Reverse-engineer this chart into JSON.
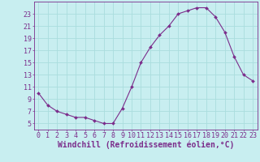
{
  "x": [
    0,
    1,
    2,
    3,
    4,
    5,
    6,
    7,
    8,
    9,
    10,
    11,
    12,
    13,
    14,
    15,
    16,
    17,
    18,
    19,
    20,
    21,
    22,
    23
  ],
  "y": [
    10,
    8,
    7,
    6.5,
    6,
    6,
    5.5,
    5,
    5,
    7.5,
    11,
    15,
    17.5,
    19.5,
    21,
    23,
    23.5,
    24,
    24,
    22.5,
    20,
    16,
    13,
    12
  ],
  "line_color": "#7B2D8B",
  "marker": "D",
  "marker_size": 2.0,
  "bg_color": "#C8EEF0",
  "grid_color": "#AADDDD",
  "xlabel": "Windchill (Refroidissement éolien,°C)",
  "xlabel_fontsize": 7,
  "tick_color": "#7B2D8B",
  "tick_fontsize": 6,
  "ylim": [
    4,
    25
  ],
  "yticks": [
    5,
    7,
    9,
    11,
    13,
    15,
    17,
    19,
    21,
    23
  ],
  "xlim": [
    -0.5,
    23.5
  ],
  "xticks": [
    0,
    1,
    2,
    3,
    4,
    5,
    6,
    7,
    8,
    9,
    10,
    11,
    12,
    13,
    14,
    15,
    16,
    17,
    18,
    19,
    20,
    21,
    22,
    23
  ]
}
